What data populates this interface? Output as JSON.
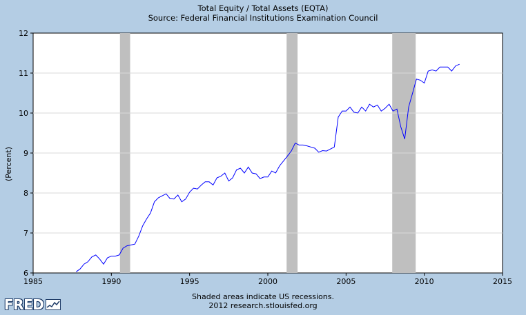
{
  "header": {
    "title": "Total Equity / Total Assets (EQTA)",
    "source": "Source: Federal Financial Institutions Examination Council"
  },
  "footer": {
    "note": "Shaded areas indicate US recessions.",
    "credit": "2012 research.stlouisfed.org"
  },
  "logo": {
    "text": "FRED"
  },
  "colors": {
    "background": "#b4cde4",
    "plot_bg": "#ffffff",
    "line": "#0000ff",
    "recession": "#bfbfbf",
    "grid": "#d9d9d9"
  },
  "chart_data": {
    "type": "line",
    "title": "Total Equity / Total Assets (EQTA)",
    "subtitle": "Source: Federal Financial Institutions Examination Council",
    "xlabel": "",
    "ylabel": "(Percent)",
    "xlim": [
      1985,
      2015
    ],
    "ylim": [
      6,
      12
    ],
    "x_ticks": [
      1985,
      1990,
      1995,
      2000,
      2005,
      2010,
      2015
    ],
    "y_ticks": [
      6,
      7,
      8,
      9,
      10,
      11,
      12
    ],
    "grid": true,
    "recessions": [
      [
        1990.55,
        1991.2
      ],
      [
        2001.2,
        2001.9
      ],
      [
        2007.95,
        2009.45
      ]
    ],
    "series": [
      {
        "x": [
          1987.75,
          1988.0,
          1988.25,
          1988.5,
          1988.75,
          1989.0,
          1989.25,
          1989.5,
          1989.75,
          1990.0,
          1990.25,
          1990.5,
          1990.75,
          1991.0,
          1991.25,
          1991.5,
          1991.75,
          1992.0,
          1992.25,
          1992.5,
          1992.75,
          1993.0,
          1993.25,
          1993.5,
          1993.75,
          1994.0,
          1994.25,
          1994.5,
          1994.75,
          1995.0,
          1995.25,
          1995.5,
          1995.75,
          1996.0,
          1996.25,
          1996.5,
          1996.75,
          1997.0,
          1997.25,
          1997.5,
          1997.75,
          1998.0,
          1998.25,
          1998.5,
          1998.75,
          1999.0,
          1999.25,
          1999.5,
          1999.75,
          2000.0,
          2000.25,
          2000.5,
          2000.75,
          2001.0,
          2001.25,
          2001.5,
          2001.75,
          2002.0,
          2002.25,
          2002.5,
          2002.75,
          2003.0,
          2003.25,
          2003.5,
          2003.75,
          2004.0,
          2004.25,
          2004.5,
          2004.75,
          2005.0,
          2005.25,
          2005.5,
          2005.75,
          2006.0,
          2006.25,
          2006.5,
          2006.75,
          2007.0,
          2007.25,
          2007.5,
          2007.75,
          2008.0,
          2008.25,
          2008.5,
          2008.75,
          2009.0,
          2009.25,
          2009.5,
          2009.75,
          2010.0,
          2010.25,
          2010.5,
          2010.75,
          2011.0,
          2011.25,
          2011.5,
          2011.75,
          2012.0,
          2012.25
        ],
        "values": [
          6.03,
          6.1,
          6.22,
          6.28,
          6.4,
          6.45,
          6.35,
          6.22,
          6.38,
          6.42,
          6.42,
          6.45,
          6.62,
          6.68,
          6.7,
          6.72,
          6.92,
          7.18,
          7.35,
          7.5,
          7.78,
          7.88,
          7.93,
          7.98,
          7.86,
          7.85,
          7.95,
          7.78,
          7.85,
          8.02,
          8.12,
          8.1,
          8.2,
          8.28,
          8.28,
          8.2,
          8.38,
          8.42,
          8.5,
          8.3,
          8.38,
          8.58,
          8.62,
          8.5,
          8.65,
          8.5,
          8.48,
          8.36,
          8.4,
          8.4,
          8.55,
          8.5,
          8.68,
          8.8,
          8.92,
          9.05,
          9.25,
          9.2,
          9.2,
          9.18,
          9.15,
          9.12,
          9.02,
          9.06,
          9.05,
          9.1,
          9.15,
          9.9,
          10.05,
          10.05,
          10.15,
          10.02,
          10.0,
          10.15,
          10.05,
          10.22,
          10.15,
          10.2,
          10.05,
          10.12,
          10.22,
          10.05,
          10.1,
          9.65,
          9.35,
          10.15,
          10.5,
          10.85,
          10.82,
          10.75,
          11.05,
          11.08,
          11.05,
          11.15,
          11.15,
          11.15,
          11.05,
          11.18,
          11.22
        ]
      }
    ]
  }
}
